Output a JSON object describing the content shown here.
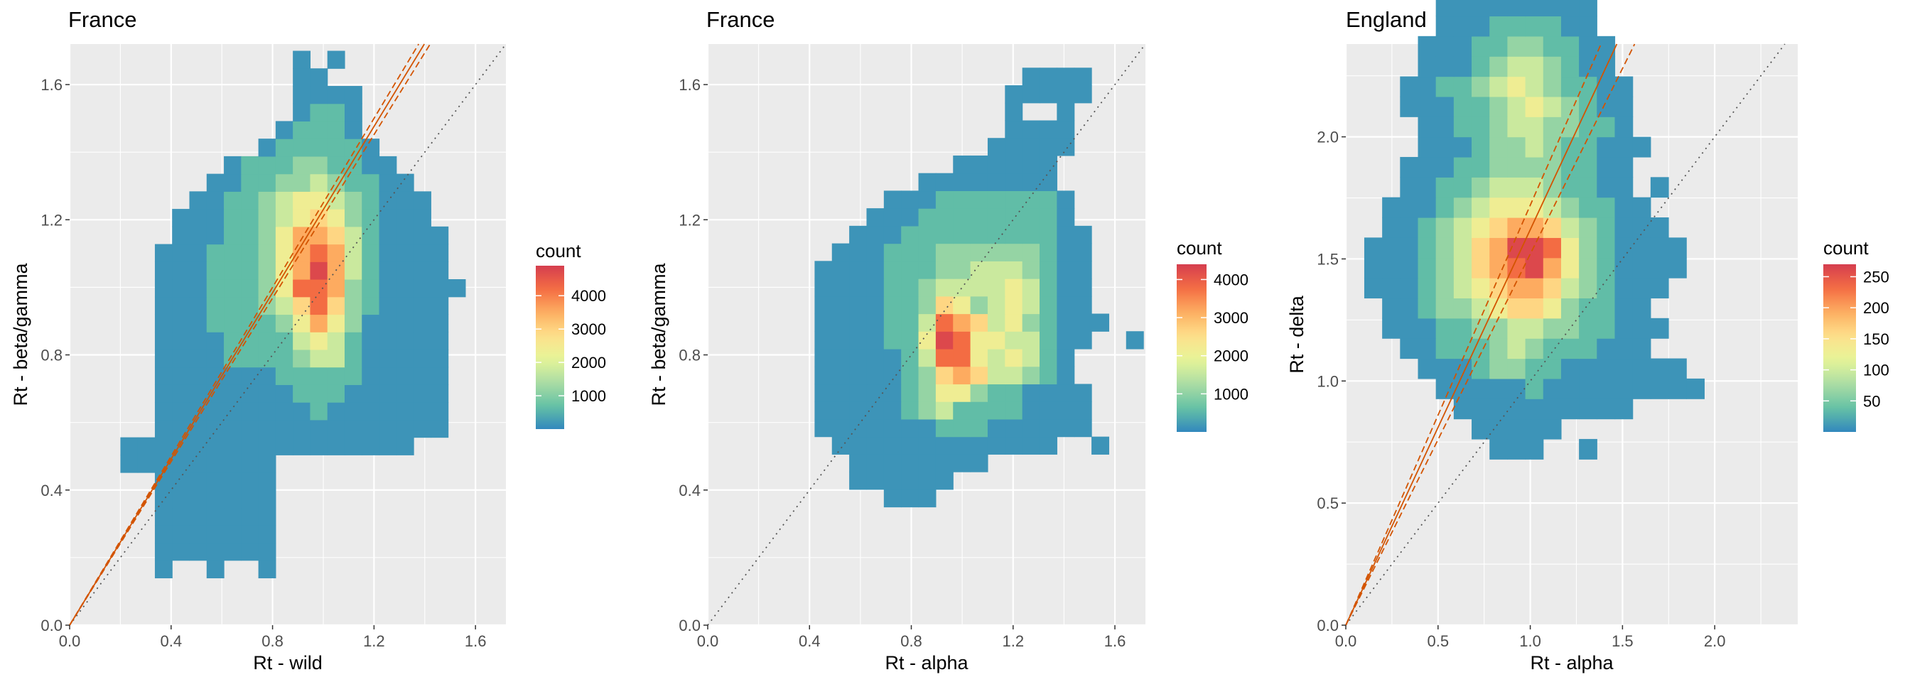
{
  "chart_data": [
    {
      "type": "heatmap",
      "title": "France",
      "xlabel": "Rt - wild",
      "ylabel": "Rt - beta/gamma",
      "xlim": [
        0,
        1.72
      ],
      "ylim": [
        0,
        1.72
      ],
      "xticks": [
        0.0,
        0.4,
        0.8,
        1.2,
        1.6
      ],
      "yticks": [
        0.0,
        0.4,
        0.8,
        1.2,
        1.6
      ],
      "tick_format": 1,
      "legend": {
        "title": "count",
        "ticks": [
          1000,
          2000,
          3000,
          4000
        ],
        "min": 0,
        "max": 4900
      },
      "identity_line": true,
      "fit": {
        "slope": 1.23,
        "ci_low": 1.21,
        "ci_high": 1.25
      },
      "bins": {
        "x0": 0.2,
        "y0": 0.14,
        "dx": 0.068,
        "dy": 0.052,
        "rows": [
          "..A..A..A..........",
          "..AAAAAAA..........",
          "..AAAAAAA..........",
          "..AAAAAAA..........",
          "..AAAAAAA..........",
          "..AAAAAAA..........",
          "AAAAAAAAA..........",
          "AAAAAAAAAAAAAAAAA..",
          "..AAAAAAAAAAAAAAAAA",
          "..AAAAAAAAABAAAAAAA",
          "..AAAAAAAABBBAAAAAA",
          "..AAAAAAABBBBBAAAAA",
          "..AAAABBBBCDDBAAAAA",
          "..AAAABBBBDEDBAAAAA",
          "..AAABBBBCEGECAAAAA",
          "..AAABBBCDFHFCBAAAA",
          "..AAABBBCEHHGCBAAAAA",
          "..AAABBBCEGIGDBAAAA",
          "..AAABBBCEGHGDBAAAA",
          "...AAABBCEGGFDBAAAA",
          "...AAABBCDEFECBAAA.",
          "....AABBCDEEDCBAAA.",
          ".....AABBCCDCBBAA..",
          "......ABBBCCBBAA...",
          "........ABBBBBA....",
          ".........ABBBA.....",
          "..........ABBA.....",
          "..........AAAA.....",
          "..........AA.......",
          "..........A.A......"
        ]
      }
    },
    {
      "type": "heatmap",
      "title": "France",
      "xlabel": "Rt - alpha",
      "ylabel": "Rt - beta/gamma",
      "xlim": [
        0,
        1.72
      ],
      "ylim": [
        0,
        1.72
      ],
      "xticks": [
        0.0,
        0.4,
        0.8,
        1.2,
        1.6
      ],
      "yticks": [
        0.0,
        0.4,
        0.8,
        1.2,
        1.6
      ],
      "tick_format": 1,
      "legend": {
        "title": "count",
        "ticks": [
          1000,
          2000,
          3000,
          4000
        ],
        "min": 0,
        "max": 4400
      },
      "identity_line": true,
      "fit": null,
      "bins": {
        "x0": 0.42,
        "y0": 0.35,
        "dx": 0.068,
        "dy": 0.052,
        "rows": [
          "....AAA.............",
          "..AAAAAA............",
          "..AAAAAAAA..........",
          ".AAAAAAAAAAAAA..A...",
          "AAAAAAABBBAAAAAA....",
          "AAAAABCDBBBBAAAA....",
          "AAAAABCEECBBAAAA....",
          "AAAAABCFGFDDCBA.....",
          "AAAAABDHHEDEDBA.....",
          "AAAABBEIHEEDDBAA..A.",
          "AAAABBDHGFDECBAAA...",
          "AAAABBCFECDEDBAA....",
          "AAAABBCDDDDEDBAA....",
          "AAAABBBCCDDDCBAA....",
          ".AAABBBCCCCCCBAA....",
          "..AAABBBBBBBBBAA....",
          "...AAABBBBBBBBA.....",
          "....AAABBBBBBBA.....",
          "......AAAAAAAA......",
          "........AAAAAA......",
          "..........AAAAA.....",
          "...........AAAA.....",
          "...........A..A.....",
          "...........AAAAA....",
          "............AAAA...."
        ]
      }
    },
    {
      "type": "heatmap",
      "title": "England",
      "xlabel": "Rt - alpha",
      "ylabel": "Rt - delta",
      "xlim": [
        0,
        2.45
      ],
      "ylim": [
        0,
        2.38
      ],
      "xticks": [
        0.0,
        0.5,
        1.0,
        1.5,
        2.0
      ],
      "yticks": [
        0.0,
        0.5,
        1.0,
        1.5,
        2.0
      ],
      "tick_format": 1,
      "legend": {
        "title": "count",
        "ticks": [
          50,
          100,
          150,
          200,
          250
        ],
        "min": 0,
        "max": 270
      },
      "identity_line": true,
      "fit": {
        "slope": 1.62,
        "ci_low": 1.52,
        "ci_high": 1.72
      },
      "bins": {
        "x0": 0.1,
        "y0": 0.68,
        "dx": 0.097,
        "dy": 0.0825,
        "rows": [
          ".......AAA..A.......",
          "......AAAAA.........",
          ".....AAAAAAAAAA.....",
          "....AAAAABAAAAAAAAA.",
          "...AAABCCBBAAAAAAA..",
          "..AABBBCDCBBBAAA....",
          ".AAABBCCDDCCBBAAA...",
          ".AABCCDEFFECBBAA....",
          "AAABCDEFGGFDCBAAA...",
          "AAABCDFGHIGECBAAAA..",
          "AAABCDFGIIHECBAAAA..",
          ".AABCDEFGGFDCBAAA...",
          ".AAABCDEEEDCBBAA....",
          "..AABBCDDDCBBAA.A...",
          "..AAABBCCCCBBAA.....",
          "...AAABCCDCBBAAA....",
          "...AABBCDDCCBBA.....",
          "..AAABBCDEDCBAA.....",
          "..AABBCDEDCBBAA.....",
          "...AAABCDDCBAA......",
          "...AAABBCCBBAA......",
          "....AAABBBBAA.......",
          "....AAAAAAAAA.......",
          ".....AAAAAAA........"
        ]
      }
    }
  ]
}
